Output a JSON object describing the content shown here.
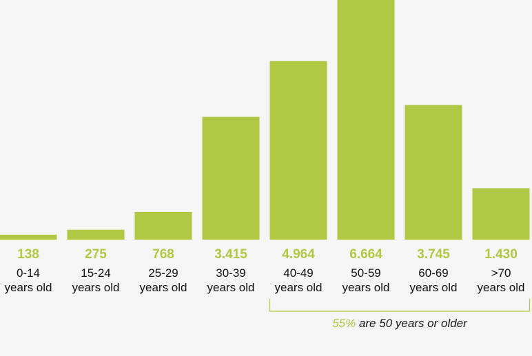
{
  "chart_data": {
    "type": "bar",
    "categories": [
      [
        "0-14",
        "years old"
      ],
      [
        "15-24",
        "years old"
      ],
      [
        "25-29",
        "years old"
      ],
      [
        "30-39",
        "years old"
      ],
      [
        "40-49",
        "years old"
      ],
      [
        "50-59",
        "years old"
      ],
      [
        "60-69",
        "years old"
      ],
      [
        ">70",
        "years old"
      ]
    ],
    "values": [
      138,
      275,
      768,
      3415,
      4964,
      6664,
      3745,
      1430
    ],
    "value_labels": [
      "138",
      "275",
      "768",
      "3.415",
      "4.964",
      "6.664",
      "3.745",
      "1.430"
    ],
    "ylim": [
      0,
      6664
    ],
    "grid": false,
    "legend": "none",
    "annotation": {
      "highlight": "55%",
      "text": " are 50 years or older",
      "span_categories": [
        4,
        7
      ]
    }
  },
  "colors": {
    "bar": "#b0c843",
    "value_label": "#b0c843",
    "bracket": "#b0c843",
    "background": "#f5f5f5"
  }
}
